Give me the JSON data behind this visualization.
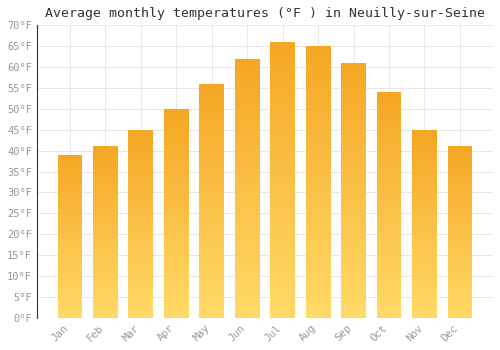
{
  "title": "Average monthly temperatures (°F ) in Neuilly-sur-Seine",
  "months": [
    "Jan",
    "Feb",
    "Mar",
    "Apr",
    "May",
    "Jun",
    "Jul",
    "Aug",
    "Sep",
    "Oct",
    "Nov",
    "Dec"
  ],
  "values": [
    39,
    41,
    45,
    50,
    56,
    62,
    66,
    65,
    61,
    54,
    45,
    41
  ],
  "bar_color_top": "#F5A623",
  "bar_color_bottom": "#FFD966",
  "ylim": [
    0,
    70
  ],
  "yticks": [
    0,
    5,
    10,
    15,
    20,
    25,
    30,
    35,
    40,
    45,
    50,
    55,
    60,
    65,
    70
  ],
  "ylabel_suffix": "°F",
  "background_color": "#FFFFFF",
  "grid_color": "#DDDDDD",
  "title_fontsize": 9.5,
  "tick_fontsize": 7.5,
  "title_font": "monospace",
  "tick_color": "#999999",
  "bar_width": 0.7,
  "left_spine_color": "#333333"
}
